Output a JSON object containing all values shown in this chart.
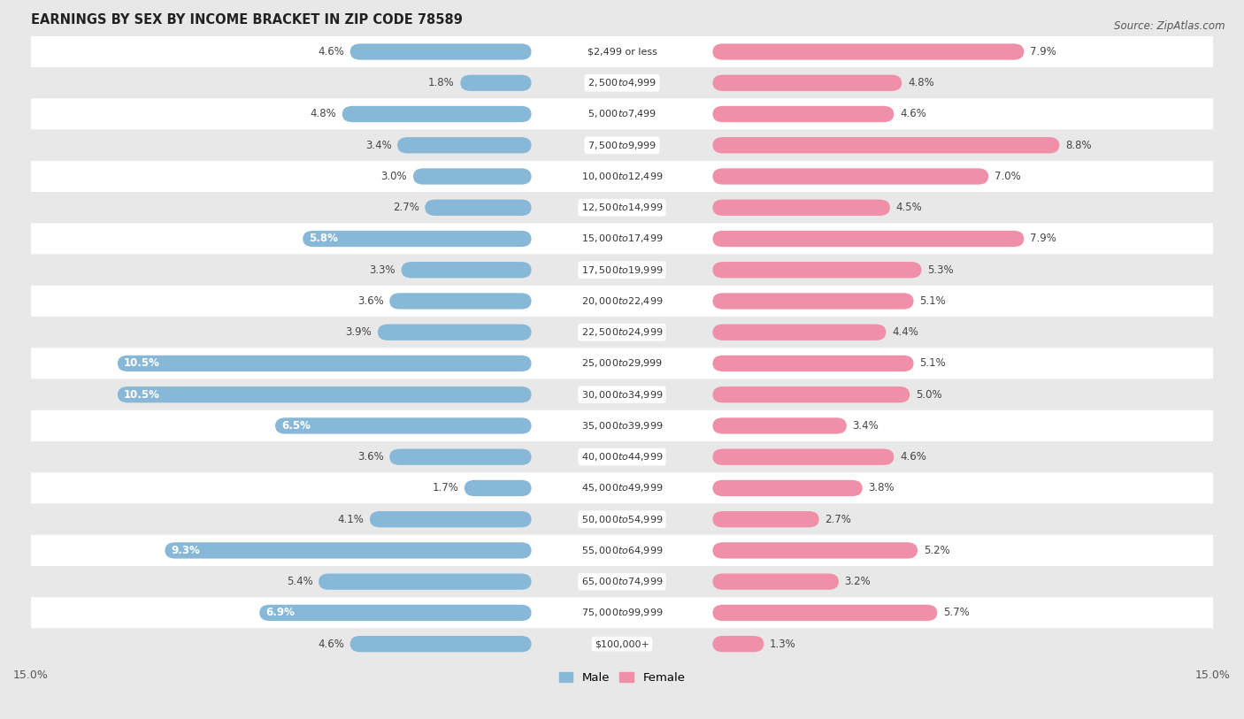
{
  "title": "EARNINGS BY SEX BY INCOME BRACKET IN ZIP CODE 78589",
  "source": "Source: ZipAtlas.com",
  "categories": [
    "$2,499 or less",
    "$2,500 to $4,999",
    "$5,000 to $7,499",
    "$7,500 to $9,999",
    "$10,000 to $12,499",
    "$12,500 to $14,999",
    "$15,000 to $17,499",
    "$17,500 to $19,999",
    "$20,000 to $22,499",
    "$22,500 to $24,999",
    "$25,000 to $29,999",
    "$30,000 to $34,999",
    "$35,000 to $39,999",
    "$40,000 to $44,999",
    "$45,000 to $49,999",
    "$50,000 to $54,999",
    "$55,000 to $64,999",
    "$65,000 to $74,999",
    "$75,000 to $99,999",
    "$100,000+"
  ],
  "male_values": [
    4.6,
    1.8,
    4.8,
    3.4,
    3.0,
    2.7,
    5.8,
    3.3,
    3.6,
    3.9,
    10.5,
    10.5,
    6.5,
    3.6,
    1.7,
    4.1,
    9.3,
    5.4,
    6.9,
    4.6
  ],
  "female_values": [
    7.9,
    4.8,
    4.6,
    8.8,
    7.0,
    4.5,
    7.9,
    5.3,
    5.1,
    4.4,
    5.1,
    5.0,
    3.4,
    4.6,
    3.8,
    2.7,
    5.2,
    3.2,
    5.7,
    1.3
  ],
  "male_color": "#88b8d8",
  "female_color": "#f090a8",
  "background_color": "#e8e8e8",
  "row_color_even": "#ffffff",
  "row_color_odd": "#e8e8e8",
  "xlim": 15.0,
  "bar_height": 0.52,
  "title_fontsize": 10.5,
  "label_fontsize": 8.5,
  "tick_fontsize": 9,
  "threshold_white_label": 5.5
}
